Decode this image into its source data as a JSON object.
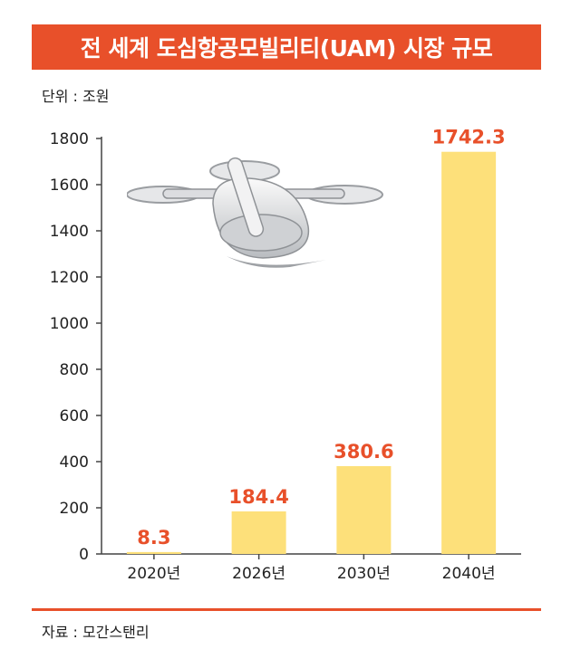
{
  "title": "전 세계 도심항공모빌리티(UAM) 시장 규모",
  "unit": "단위 : 조원",
  "source": "자료 : 모간스탠리",
  "colors": {
    "accent": "#e8502a",
    "bar": "#fde07a",
    "axis": "#444444",
    "label": "#e8502a"
  },
  "chart_data": {
    "type": "bar",
    "categories": [
      "2020년",
      "2026년",
      "2030년",
      "2040년"
    ],
    "values": [
      8.3,
      184.4,
      380.6,
      1742.3
    ],
    "value_labels": [
      "8.3",
      "184.4",
      "380.6",
      "1742.3"
    ],
    "yticks": [
      "0",
      "200",
      "400",
      "600",
      "800",
      "1000",
      "1200",
      "1400",
      "1600",
      "1800"
    ],
    "ylim": [
      0,
      1800
    ],
    "grid": false
  }
}
